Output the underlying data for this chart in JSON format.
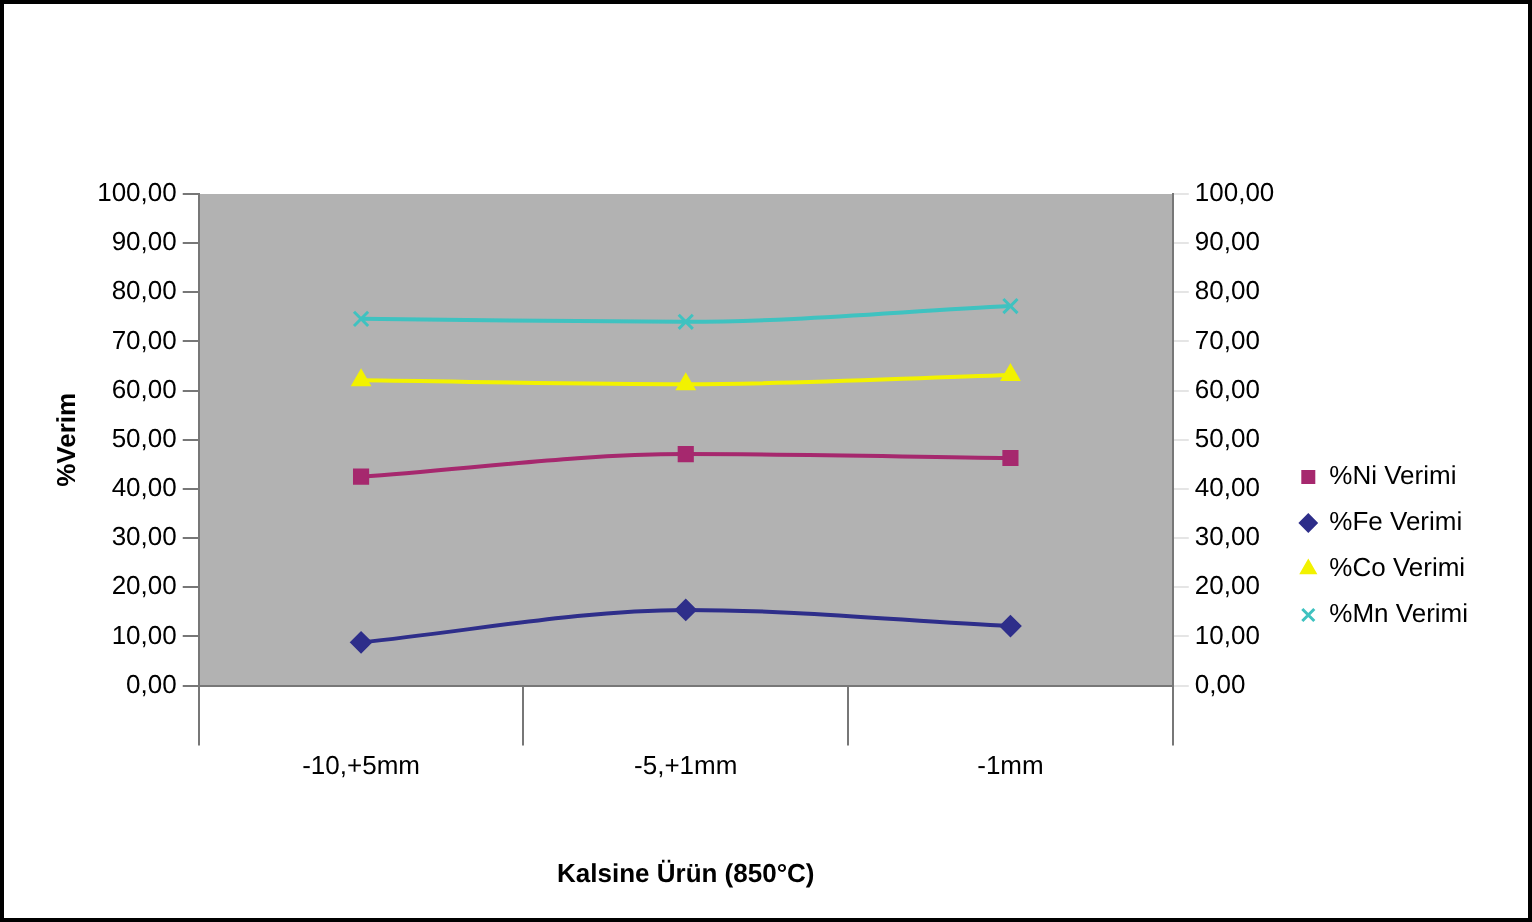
{
  "chart_data": {
    "type": "line",
    "xlabel": "Kalsine Ürün (850°C)",
    "ylabel": "%Verim",
    "categories": [
      "-10,+5mm",
      "-5,+1mm",
      "-1mm"
    ],
    "series": [
      {
        "name": "%Ni Verimi",
        "color": "#a6286e",
        "marker": "square",
        "values": [
          42.5,
          47.1,
          46.3
        ]
      },
      {
        "name": "%Fe Verimi",
        "color": "#2e2e8a",
        "marker": "diamond",
        "values": [
          8.8,
          15.4,
          12.1
        ]
      },
      {
        "name": "%Co Verimi",
        "color": "#f2f200",
        "marker": "triangle",
        "values": [
          62.1,
          61.3,
          63.2
        ]
      },
      {
        "name": "%Mn Verimi",
        "color": "#3fc2c0",
        "marker": "cross",
        "values": [
          74.6,
          74.0,
          77.2
        ]
      }
    ],
    "ylim": [
      0,
      100
    ],
    "yticks": [
      {
        "value": 0,
        "label": "0,00"
      },
      {
        "value": 10,
        "label": "10,00"
      },
      {
        "value": 20,
        "label": "20,00"
      },
      {
        "value": 30,
        "label": "30,00"
      },
      {
        "value": 40,
        "label": "40,00"
      },
      {
        "value": 50,
        "label": "50,00"
      },
      {
        "value": 60,
        "label": "60,00"
      },
      {
        "value": 70,
        "label": "70,00"
      },
      {
        "value": 80,
        "label": "80,00"
      },
      {
        "value": 90,
        "label": "90,00"
      },
      {
        "value": 100,
        "label": "100,00"
      }
    ],
    "y2lim": [
      0,
      100
    ],
    "y2ticks": [
      {
        "value": 0,
        "label": "0,00"
      },
      {
        "value": 10,
        "label": "10,00"
      },
      {
        "value": 20,
        "label": "20,00"
      },
      {
        "value": 30,
        "label": "30,00"
      },
      {
        "value": 40,
        "label": "40,00"
      },
      {
        "value": 50,
        "label": "50,00"
      },
      {
        "value": 60,
        "label": "60,00"
      },
      {
        "value": 70,
        "label": "70,00"
      },
      {
        "value": 80,
        "label": "80,00"
      },
      {
        "value": 90,
        "label": "90,00"
      },
      {
        "value": 100,
        "label": "100,00"
      }
    ],
    "grid": false,
    "legend": "right",
    "line_style": "solid"
  }
}
